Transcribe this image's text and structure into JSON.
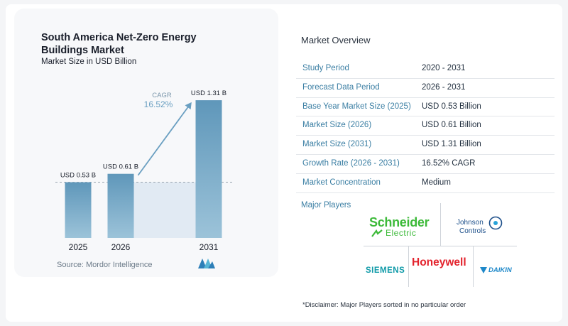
{
  "chart_data": {
    "type": "bar",
    "title": "South America Net-Zero Energy Buildings Market",
    "subtitle": "Market Size in USD Billion",
    "categories": [
      "2025",
      "2026",
      "2031"
    ],
    "values": [
      0.53,
      0.61,
      1.31
    ],
    "value_labels": [
      "USD 0.53 B",
      "USD 0.61 B",
      "USD 1.31 B"
    ],
    "unit": "USD Billion",
    "cagr_label": "CAGR",
    "cagr_value": "16.52%",
    "bar_color": "#5f97ba",
    "bar_color_light": "#9cc3d9",
    "shade_color": "#dde8f1",
    "arrow_color": "#6a9fc1",
    "grid": false
  },
  "source": "Source:  Mordor Intelligence",
  "overview": {
    "title": "Market Overview",
    "rows": [
      {
        "label": "Study Period",
        "value": "2020 - 2031"
      },
      {
        "label": "Forecast Data Period",
        "value": "2026 - 2031"
      },
      {
        "label": "Base Year Market Size (2025)",
        "value": "USD 0.53 Billion"
      },
      {
        "label": "Market Size (2026)",
        "value": "USD 0.61 Billion"
      },
      {
        "label": "Market Size (2031)",
        "value": "USD 1.31 Billion"
      },
      {
        "label": "Growth Rate (2026 - 2031)",
        "value": "16.52% CAGR"
      },
      {
        "label": "Market Concentration",
        "value": "Medium"
      }
    ]
  },
  "players": {
    "title": "Major Players",
    "schneider": "Schneider",
    "schneider_sub": "Electric",
    "johnson_line1": "Johnson",
    "johnson_line2": "Controls",
    "honeywell": "Honeywell",
    "siemens": "SIEMENS",
    "daikin": "DAIKIN"
  },
  "disclaimer": "*Disclaimer: Major Players sorted in no particular order"
}
